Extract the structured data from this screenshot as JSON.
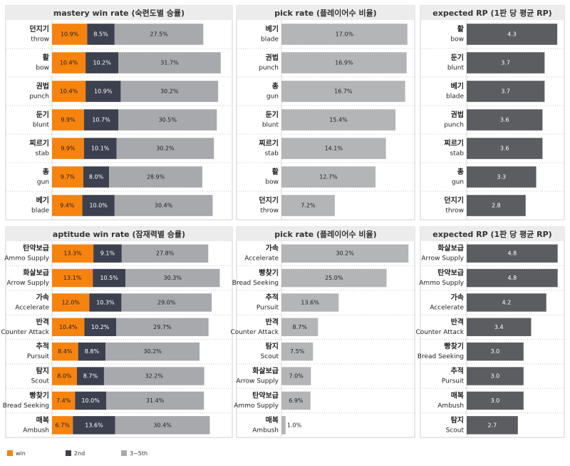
{
  "chart_data": [
    {
      "type": "stacked_hbar",
      "title": "mastery win rate (숙련도별 승률)",
      "categories": [
        [
          "던지기",
          "throw"
        ],
        [
          "활",
          "bow"
        ],
        [
          "권법",
          "punch"
        ],
        [
          "둔기",
          "blunt"
        ],
        [
          "찌르기",
          "stab"
        ],
        [
          "총",
          "gun"
        ],
        [
          "베기",
          "blade"
        ]
      ],
      "series": [
        {
          "name": "win",
          "color": "#f7830f",
          "values": [
            10.9,
            10.4,
            10.4,
            9.9,
            9.9,
            9.7,
            9.4
          ],
          "value_labels": [
            "10.9%",
            "10.4%",
            "10.4%",
            "9.9%",
            "9.9%",
            "9.7%",
            "9.4%"
          ]
        },
        {
          "name": "2nd",
          "color": "#3d404f",
          "values": [
            8.5,
            10.2,
            10.9,
            10.7,
            10.1,
            8.0,
            10.0
          ],
          "value_labels": [
            "8.5%",
            "10.2%",
            "10.9%",
            "10.7%",
            "10.1%",
            "8.0%",
            "10.0%"
          ]
        },
        {
          "name": "3~5th",
          "color": "#a7a9ac",
          "values": [
            27.5,
            31.7,
            30.2,
            30.5,
            30.2,
            28.9,
            30.4
          ],
          "value_labels": [
            "27.5%",
            "31.7%",
            "30.2%",
            "30.5%",
            "30.2%",
            "28.9%",
            "30.4%"
          ]
        }
      ],
      "xlim": [
        0,
        55
      ]
    },
    {
      "type": "hbar",
      "title": "pick rate (플레이어수 비율)",
      "categories": [
        [
          "베기",
          "blade"
        ],
        [
          "권법",
          "punch"
        ],
        [
          "총",
          "gun"
        ],
        [
          "둔기",
          "blunt"
        ],
        [
          "찌르기",
          "stab"
        ],
        [
          "활",
          "bow"
        ],
        [
          "던지기",
          "throw"
        ]
      ],
      "values": [
        17.0,
        16.9,
        16.7,
        15.4,
        14.1,
        12.7,
        7.2
      ],
      "value_labels": [
        "17.0%",
        "16.9%",
        "16.7%",
        "15.4%",
        "14.1%",
        "12.7%",
        "7.2%"
      ],
      "color": "#b4b5b7",
      "xlim": [
        0,
        17.6
      ]
    },
    {
      "type": "hbar",
      "title": "expected RP (1판 당 평균 RP)",
      "categories": [
        [
          "활",
          "bow"
        ],
        [
          "둔기",
          "blunt"
        ],
        [
          "베기",
          "blade"
        ],
        [
          "권법",
          "punch"
        ],
        [
          "찌르기",
          "stab"
        ],
        [
          "총",
          "gun"
        ],
        [
          "던지기",
          "throw"
        ]
      ],
      "values": [
        4.3,
        3.7,
        3.7,
        3.6,
        3.6,
        3.3,
        2.8
      ],
      "value_labels": [
        "4.3",
        "3.7",
        "3.7",
        "3.6",
        "3.6",
        "3.3",
        "2.8"
      ],
      "color": "#5c5d60",
      "xlim": [
        0,
        4.5
      ]
    },
    {
      "type": "stacked_hbar",
      "title": "aptitude win rate (잠재력별 승률)",
      "categories": [
        [
          "탄약보급",
          "Ammo Supply"
        ],
        [
          "화살보급",
          "Arrow Supply"
        ],
        [
          "가속",
          "Accelerate"
        ],
        [
          "반격",
          "Counter Attack"
        ],
        [
          "추적",
          "Pursuit"
        ],
        [
          "탐지",
          "Scout"
        ],
        [
          "빵찾기",
          "Bread Seeking"
        ],
        [
          "매복",
          "Ambush"
        ]
      ],
      "series": [
        {
          "name": "win",
          "color": "#f7830f",
          "values": [
            13.3,
            13.1,
            12.0,
            10.4,
            8.4,
            8.0,
            7.4,
            6.7
          ],
          "value_labels": [
            "13.3%",
            "13.1%",
            "12.0%",
            "10.4%",
            "8.4%",
            "8.0%",
            "7.4%",
            "6.7%"
          ]
        },
        {
          "name": "2nd",
          "color": "#3d404f",
          "values": [
            9.1,
            10.5,
            10.3,
            10.2,
            8.8,
            8.7,
            10.0,
            13.6
          ],
          "value_labels": [
            "9.1%",
            "10.5%",
            "10.3%",
            "10.2%",
            "8.8%",
            "8.7%",
            "10.0%",
            "13.6%"
          ]
        },
        {
          "name": "3~5th",
          "color": "#a7a9ac",
          "values": [
            27.8,
            30.3,
            29.0,
            29.7,
            30.2,
            32.2,
            31.4,
            30.4
          ],
          "value_labels": [
            "27.8%",
            "30.3%",
            "29.0%",
            "29.7%",
            "30.2%",
            "32.2%",
            "31.4%",
            "30.4%"
          ]
        }
      ],
      "xlim": [
        0,
        57
      ]
    },
    {
      "type": "hbar",
      "title": "pick rate (플레이어수 비율)",
      "categories": [
        [
          "가속",
          "Accelerate"
        ],
        [
          "빵찾기",
          "Bread Seeking"
        ],
        [
          "추적",
          "Pursuit"
        ],
        [
          "반격",
          "Counter Attack"
        ],
        [
          "탐지",
          "Scout"
        ],
        [
          "화살보급",
          "Arrow Supply"
        ],
        [
          "탄약보급",
          "Ammo Supply"
        ],
        [
          "매복",
          "Ambush"
        ]
      ],
      "values": [
        30.2,
        25.0,
        13.6,
        8.7,
        7.5,
        7.0,
        6.9,
        1.0
      ],
      "value_labels": [
        "30.2%",
        "25.0%",
        "13.6%",
        "8.7%",
        "7.5%",
        "7.0%",
        "6.9%",
        "1.0%"
      ],
      "color": "#b4b5b7",
      "xlim": [
        0,
        31
      ]
    },
    {
      "type": "hbar",
      "title": "expected RP (1판 당 평균 RP)",
      "categories": [
        [
          "화살보급",
          "Arrow Supply"
        ],
        [
          "탄약보급",
          "Ammo Supply"
        ],
        [
          "가속",
          "Accelerate"
        ],
        [
          "반격",
          "Counter Attack"
        ],
        [
          "빵찾기",
          "Bread Seeking"
        ],
        [
          "추적",
          "Pursuit"
        ],
        [
          "매복",
          "Ambush"
        ],
        [
          "탐지",
          "Scout"
        ]
      ],
      "values": [
        4.8,
        4.8,
        4.2,
        3.4,
        3.0,
        3.0,
        3.0,
        2.7
      ],
      "value_labels": [
        "4.8",
        "4.8",
        "4.2",
        "3.4",
        "3.0",
        "3.0",
        "3.0",
        "2.7"
      ],
      "color": "#5c5d60",
      "xlim": [
        0,
        5
      ]
    }
  ]
}
